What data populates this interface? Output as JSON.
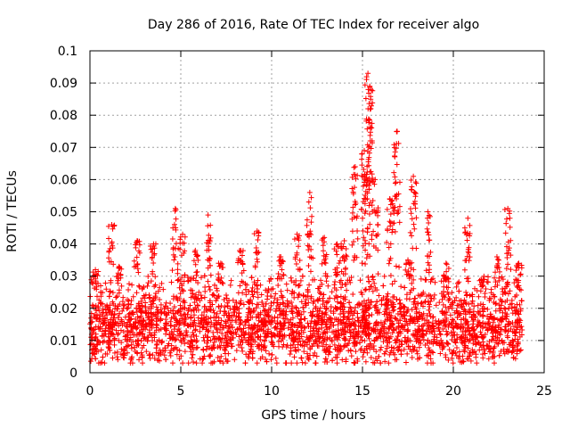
{
  "chart_data": {
    "type": "scatter",
    "title": "Day 286 of 2016, Rate Of TEC Index for receiver algo",
    "xlabel": "GPS time / hours",
    "ylabel": "ROTI / TECUs",
    "xlim": [
      0,
      25
    ],
    "ylim": [
      0,
      0.1
    ],
    "xticks": [
      0,
      5,
      10,
      15,
      20,
      25
    ],
    "xtick_labels": [
      "0",
      "5",
      "10",
      "15",
      "20",
      "25"
    ],
    "yticks": [
      0,
      0.01,
      0.02,
      0.03,
      0.04,
      0.05,
      0.06,
      0.07,
      0.08,
      0.09,
      0.1
    ],
    "ytick_labels": [
      "0",
      "0.01",
      "0.02",
      "0.03",
      "0.04",
      "0.05",
      "0.06",
      "0.07",
      "0.08",
      "0.09",
      "0.1"
    ],
    "grid": true,
    "marker": "+",
    "marker_color": "#ff0000",
    "series": [
      {
        "name": "ROTI",
        "x_range": [
          0,
          23.8
        ],
        "dense_band": [
          0.004,
          0.03
        ],
        "peaks": [
          {
            "x": 0.3,
            "y": 0.032
          },
          {
            "x": 1.2,
            "y": 0.046
          },
          {
            "x": 1.6,
            "y": 0.033
          },
          {
            "x": 2.6,
            "y": 0.041
          },
          {
            "x": 3.5,
            "y": 0.04
          },
          {
            "x": 4.7,
            "y": 0.051
          },
          {
            "x": 5.1,
            "y": 0.043
          },
          {
            "x": 5.8,
            "y": 0.038
          },
          {
            "x": 6.5,
            "y": 0.049
          },
          {
            "x": 7.2,
            "y": 0.034
          },
          {
            "x": 8.3,
            "y": 0.038
          },
          {
            "x": 9.2,
            "y": 0.044
          },
          {
            "x": 10.5,
            "y": 0.036
          },
          {
            "x": 11.4,
            "y": 0.043
          },
          {
            "x": 12.1,
            "y": 0.056
          },
          {
            "x": 12.9,
            "y": 0.042
          },
          {
            "x": 13.6,
            "y": 0.04
          },
          {
            "x": 14.0,
            "y": 0.041
          },
          {
            "x": 14.6,
            "y": 0.064
          },
          {
            "x": 15.1,
            "y": 0.069
          },
          {
            "x": 15.3,
            "y": 0.093
          },
          {
            "x": 15.4,
            "y": 0.089
          },
          {
            "x": 15.7,
            "y": 0.06
          },
          {
            "x": 16.5,
            "y": 0.054
          },
          {
            "x": 16.9,
            "y": 0.075
          },
          {
            "x": 17.5,
            "y": 0.035
          },
          {
            "x": 17.8,
            "y": 0.061
          },
          {
            "x": 18.6,
            "y": 0.05
          },
          {
            "x": 19.6,
            "y": 0.034
          },
          {
            "x": 20.8,
            "y": 0.048
          },
          {
            "x": 21.7,
            "y": 0.029
          },
          {
            "x": 22.4,
            "y": 0.036
          },
          {
            "x": 23.0,
            "y": 0.051
          },
          {
            "x": 23.6,
            "y": 0.034
          }
        ]
      }
    ]
  }
}
